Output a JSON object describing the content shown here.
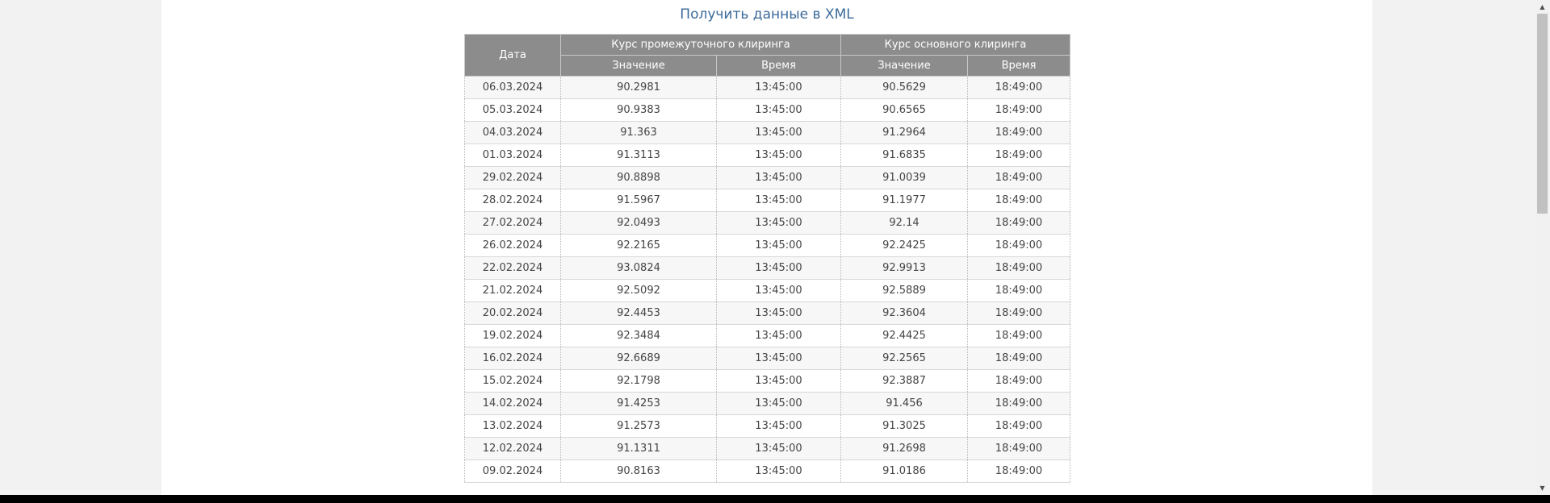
{
  "xml_link": "Получить данные в XML",
  "table": {
    "headers": {
      "date": "Дата",
      "intermediate_group": "Курс промежуточного клиринга",
      "main_group": "Курс основного клиринга",
      "value": "Значение",
      "time": "Время"
    },
    "rows": [
      [
        "06.03.2024",
        "90.2981",
        "13:45:00",
        "90.5629",
        "18:49:00"
      ],
      [
        "05.03.2024",
        "90.9383",
        "13:45:00",
        "90.6565",
        "18:49:00"
      ],
      [
        "04.03.2024",
        "91.363",
        "13:45:00",
        "91.2964",
        "18:49:00"
      ],
      [
        "01.03.2024",
        "91.3113",
        "13:45:00",
        "91.6835",
        "18:49:00"
      ],
      [
        "29.02.2024",
        "90.8898",
        "13:45:00",
        "91.0039",
        "18:49:00"
      ],
      [
        "28.02.2024",
        "91.5967",
        "13:45:00",
        "91.1977",
        "18:49:00"
      ],
      [
        "27.02.2024",
        "92.0493",
        "13:45:00",
        "92.14",
        "18:49:00"
      ],
      [
        "26.02.2024",
        "92.2165",
        "13:45:00",
        "92.2425",
        "18:49:00"
      ],
      [
        "22.02.2024",
        "93.0824",
        "13:45:00",
        "92.9913",
        "18:49:00"
      ],
      [
        "21.02.2024",
        "92.5092",
        "13:45:00",
        "92.5889",
        "18:49:00"
      ],
      [
        "20.02.2024",
        "92.4453",
        "13:45:00",
        "92.3604",
        "18:49:00"
      ],
      [
        "19.02.2024",
        "92.3484",
        "13:45:00",
        "92.4425",
        "18:49:00"
      ],
      [
        "16.02.2024",
        "92.6689",
        "13:45:00",
        "92.2565",
        "18:49:00"
      ],
      [
        "15.02.2024",
        "92.1798",
        "13:45:00",
        "92.3887",
        "18:49:00"
      ],
      [
        "14.02.2024",
        "91.4253",
        "13:45:00",
        "91.456",
        "18:49:00"
      ],
      [
        "13.02.2024",
        "91.2573",
        "13:45:00",
        "91.3025",
        "18:49:00"
      ],
      [
        "12.02.2024",
        "91.1311",
        "13:45:00",
        "91.2698",
        "18:49:00"
      ],
      [
        "09.02.2024",
        "90.8163",
        "13:45:00",
        "91.0186",
        "18:49:00"
      ]
    ]
  },
  "scrollbar": {
    "up_icon": "triangle-up-icon",
    "down_icon": "triangle-down-icon"
  }
}
